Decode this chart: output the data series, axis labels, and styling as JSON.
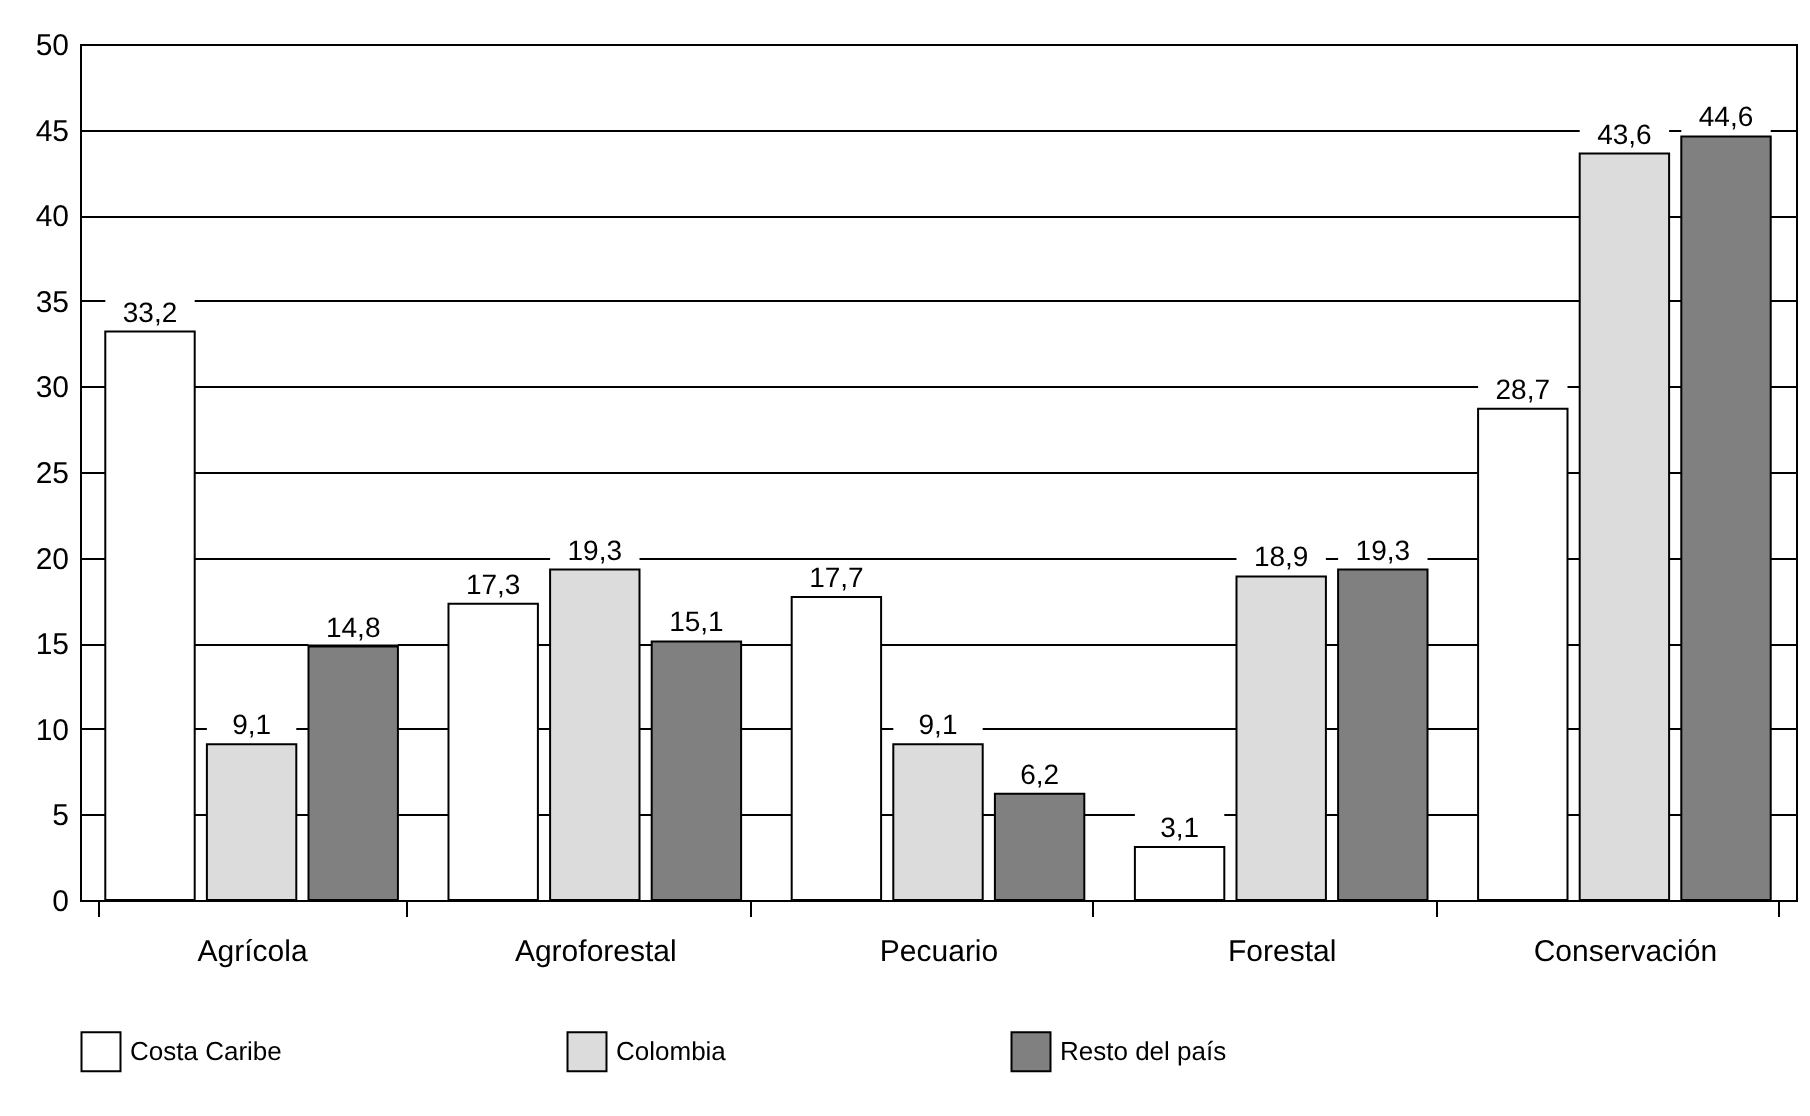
{
  "chart_data": {
    "type": "bar",
    "categories": [
      "Agrícola",
      "Agroforestal",
      "Pecuario",
      "Forestal",
      "Conservación"
    ],
    "series": [
      {
        "name": "Costa Caribe",
        "color": "#ffffff",
        "values": [
          33.2,
          17.3,
          17.7,
          3.1,
          28.7
        ],
        "value_labels": [
          "33,2",
          "17,3",
          "17,7",
          "3,1",
          "28,7"
        ]
      },
      {
        "name": "Colombia",
        "color": "#dcdcdc",
        "values": [
          9.1,
          19.3,
          9.1,
          18.9,
          43.6
        ],
        "value_labels": [
          "9,1",
          "19,3",
          "9,1",
          "18,9",
          "43,6"
        ]
      },
      {
        "name": "Resto del país",
        "color": "#808080",
        "values": [
          14.8,
          15.1,
          6.2,
          19.3,
          44.6
        ],
        "value_labels": [
          "14,8",
          "15,1",
          "6,2",
          "19,3",
          "44,6"
        ]
      }
    ],
    "ylim": [
      0,
      50
    ],
    "yticks": [
      0,
      5,
      10,
      15,
      20,
      25,
      30,
      35,
      40,
      45,
      50
    ],
    "grid": "y",
    "legend": "bottom"
  }
}
